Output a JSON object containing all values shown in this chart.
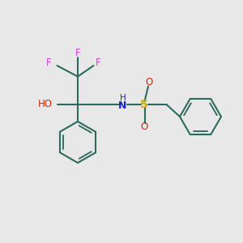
{
  "background_color": "#e8e8e8",
  "bond_color": "#2d6b5e",
  "bond_width": 1.5,
  "fig_size": [
    3.0,
    3.0
  ],
  "dpi": 100,
  "xlim": [
    0,
    10
  ],
  "ylim": [
    0,
    10
  ],
  "F_color": "#cc44cc",
  "O_color": "#dd2200",
  "N_color": "#2222cc",
  "S_color": "#ccaa00"
}
